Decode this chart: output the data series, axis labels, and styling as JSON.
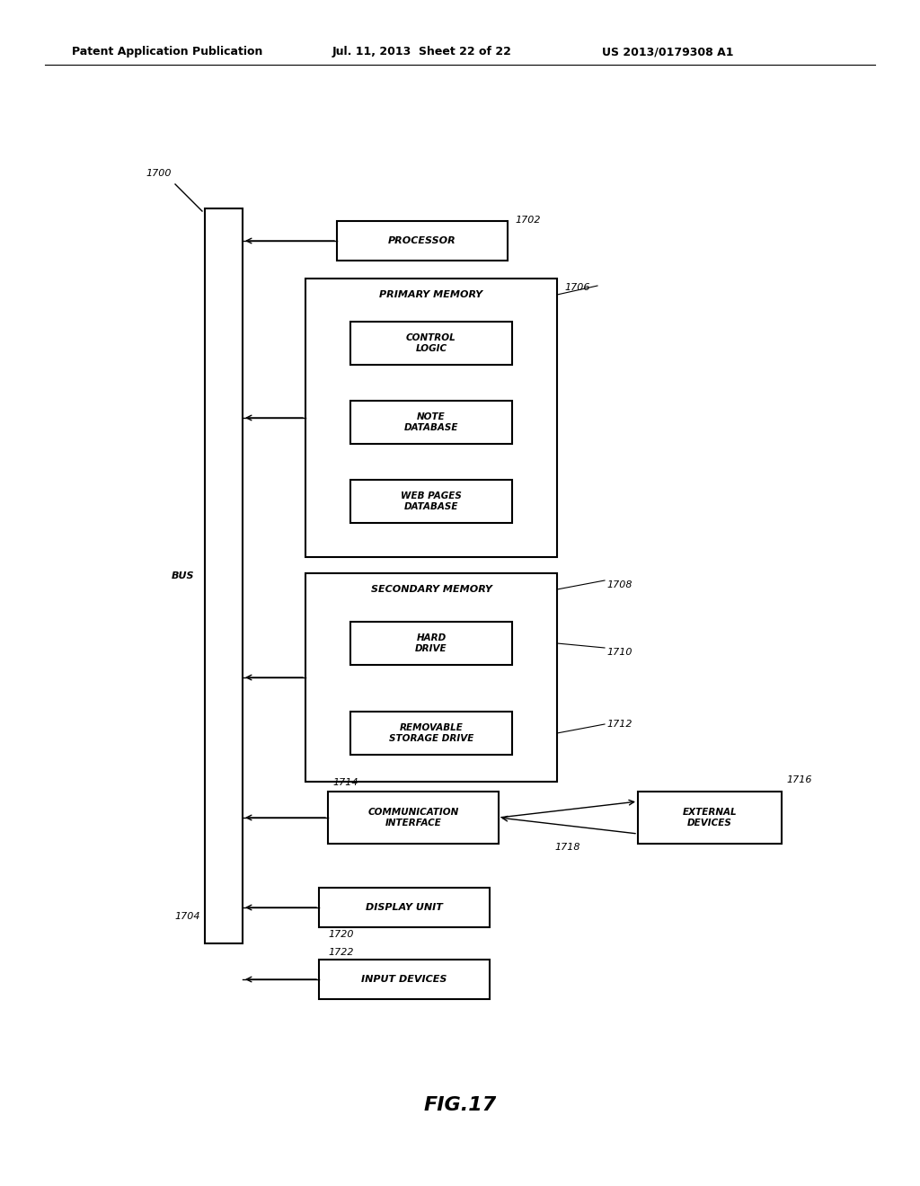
{
  "bg_color": "#ffffff",
  "header_text": "Patent Application Publication",
  "header_date": "Jul. 11, 2013  Sheet 22 of 22",
  "header_patent": "US 2013/0179308 A1",
  "fig_label": "FIG.17",
  "label_1700": "1700",
  "label_1702": "1702",
  "label_1704": "1704",
  "label_1706": "1706",
  "label_1708": "1708",
  "label_1710": "1710",
  "label_1712": "1712",
  "label_1714": "1714",
  "label_1716": "1716",
  "label_1718": "1718",
  "label_1720": "1720",
  "label_1722": "1722",
  "bus_label": "BUS",
  "processor_label": "PROCESSOR",
  "primary_memory_label": "PRIMARY MEMORY",
  "control_logic_label": "CONTROL\nLOGIC",
  "note_database_label": "NOTE\nDATABASE",
  "web_pages_database_label": "WEB PAGES\nDATABASE",
  "secondary_memory_label": "SECONDARY MEMORY",
  "hard_drive_label": "HARD\nDRIVE",
  "removable_storage_label": "REMOVABLE\nSTORAGE DRIVE",
  "communication_label": "COMMUNICATION\nINTERFACE",
  "external_devices_label": "EXTERNAL\nDEVICES",
  "display_unit_label": "DISPLAY UNIT",
  "input_devices_label": "INPUT DEVICES"
}
